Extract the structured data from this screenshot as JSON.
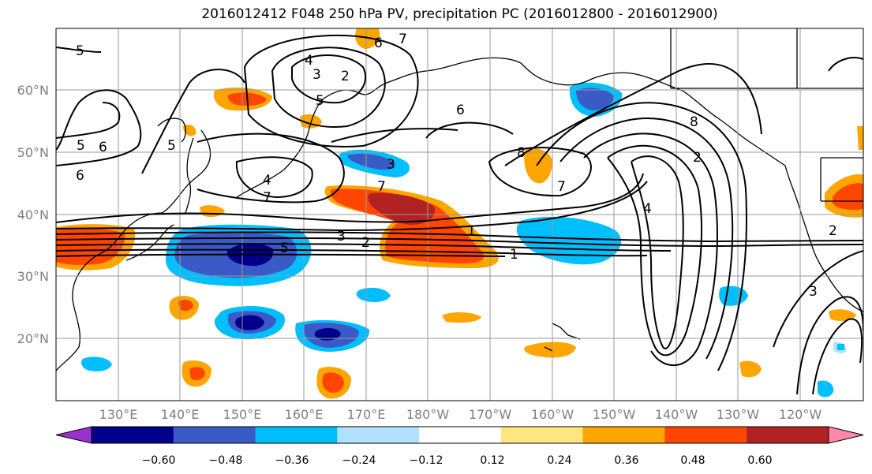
{
  "title": "2016012412 F048 250 hPa PV, precipitation PC (2016012800 - 2016012900)",
  "lat_labels": [
    "60°N",
    "50°N",
    "40°N",
    "30°N",
    "20°N"
  ],
  "lon_labels": [
    "130°E",
    "140°E",
    "150°E",
    "160°E",
    "170°E",
    "180°W",
    "170°W",
    "160°W",
    "150°W",
    "140°W",
    "130°W",
    "120°W"
  ],
  "colorbar": {
    "ticks": [
      "−0.60",
      "−0.48",
      "−0.36",
      "−0.24",
      "−0.12",
      "0.12",
      "0.24",
      "0.36",
      "0.48",
      "0.60"
    ],
    "colors": [
      "#9932cc",
      "#00008b",
      "#3a5bc7",
      "#00bfff",
      "#b0e2ff",
      "#ffffff",
      "#ffe680",
      "#ffa500",
      "#ff4500",
      "#b22222",
      "#ff88aa"
    ]
  },
  "contour_labels": [
    "5",
    "7",
    "6",
    "4",
    "3",
    "2",
    "5",
    "6",
    "5",
    "6",
    "5",
    "6",
    "3",
    "4",
    "7",
    "7",
    "8",
    "8",
    "7",
    "2",
    "4",
    "3",
    "2",
    "5",
    "1",
    "1",
    "2",
    "3"
  ],
  "colors": {
    "land_line": "#000000",
    "grid": "#999999",
    "tick_label": "#808080"
  }
}
